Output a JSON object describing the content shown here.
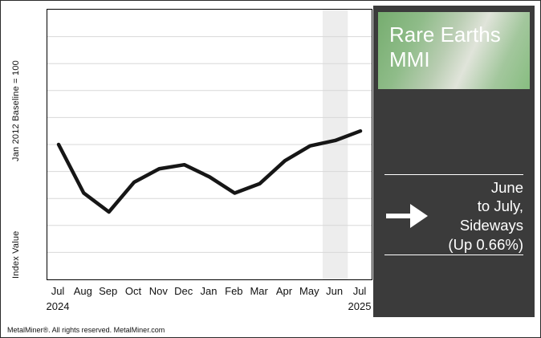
{
  "chart_data": {
    "type": "line",
    "title": "Rare Earths MMI",
    "x": [
      "Jul",
      "Aug",
      "Sep",
      "Oct",
      "Nov",
      "Dec",
      "Jan",
      "Feb",
      "Mar",
      "Apr",
      "May",
      "Jun",
      "Jul"
    ],
    "x_years": [
      {
        "index": 0,
        "label": "2024"
      },
      {
        "index": 12,
        "label": "2025"
      }
    ],
    "series": [
      {
        "name": "Rare Earths MMI",
        "values": [
          100.0,
          96.4,
          95.0,
          97.2,
          98.2,
          98.5,
          97.6,
          96.4,
          97.1,
          98.8,
          99.9,
          100.3,
          101.0
        ]
      }
    ],
    "ylim": [
      90,
      110
    ],
    "ylabel_top": "Jan 2012 Baseline = 100",
    "ylabel_bottom": "Index Value",
    "grid": true,
    "gridline_count": 9,
    "gridline_color": "#d8d8d8",
    "line_color": "#161616",
    "highlight_band": {
      "center_index": 11,
      "color": "#ededed"
    },
    "legend": "none"
  },
  "panel": {
    "title_line1": "Rare Earths",
    "title_line2": "MMI",
    "callout_text": "June\nto July,\nSideways\n(Up 0.66%)",
    "arrow_icon": "right-arrow",
    "background_color": "#3b3b3b",
    "accent_green": "#87bd80"
  },
  "footer": {
    "text": "MetalMiner®. All rights reserved. MetalMiner.com"
  }
}
